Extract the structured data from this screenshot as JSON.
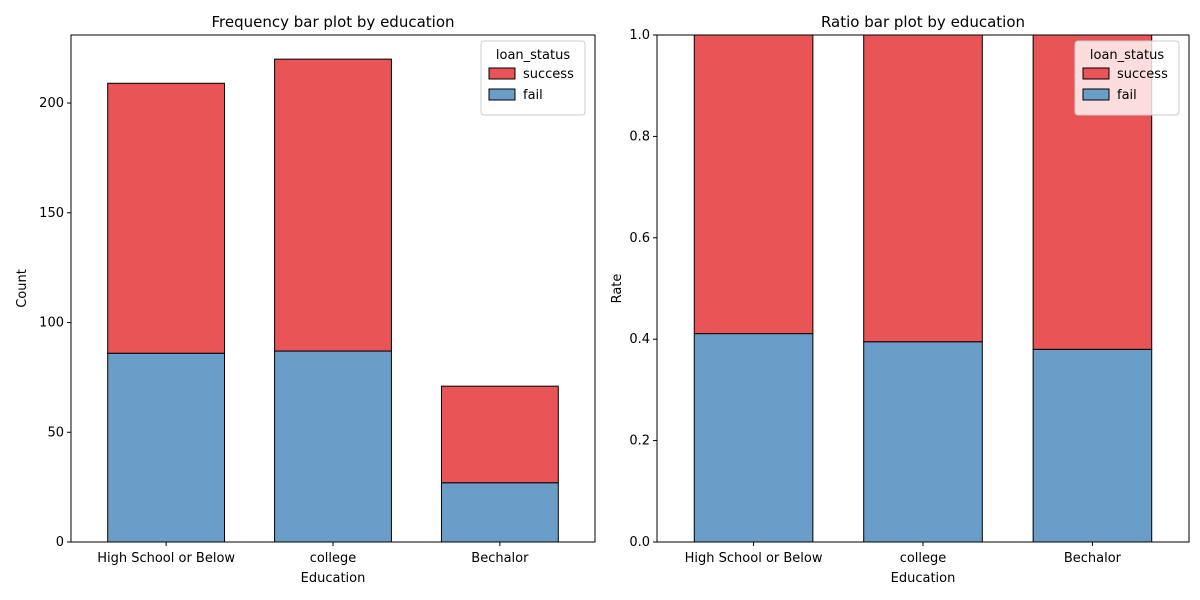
{
  "chart_data": [
    {
      "type": "bar",
      "stacked": true,
      "title": "Frequency bar plot by education",
      "xlabel": "Education",
      "ylabel": "Count",
      "categories": [
        "High School or Below",
        "college",
        "Bechalor"
      ],
      "series": [
        {
          "name": "fail",
          "values": [
            86,
            87,
            27
          ],
          "color": "#6a9ec8"
        },
        {
          "name": "success",
          "values": [
            123,
            133,
            44
          ],
          "color": "#e95457"
        }
      ],
      "ylim": [
        0,
        231
      ],
      "yticks": [
        "0",
        "50",
        "100",
        "150",
        "200"
      ],
      "ytick_values": [
        0,
        50,
        100,
        150,
        200
      ],
      "legend": {
        "title": "loan_status",
        "entries": [
          "success",
          "fail"
        ],
        "placement": "top-right"
      },
      "grid": false
    },
    {
      "type": "bar",
      "stacked": true,
      "title": "Ratio bar plot by education",
      "xlabel": "Education",
      "ylabel": "Rate",
      "categories": [
        "High School or Below",
        "college",
        "Bechalor"
      ],
      "series": [
        {
          "name": "fail",
          "values": [
            0.411,
            0.395,
            0.38
          ],
          "color": "#6a9ec8"
        },
        {
          "name": "success",
          "values": [
            0.589,
            0.605,
            0.62
          ],
          "color": "#e95457"
        }
      ],
      "ylim": [
        0,
        1
      ],
      "yticks": [
        "0.0",
        "0.2",
        "0.4",
        "0.6",
        "0.8",
        "1.0"
      ],
      "ytick_values": [
        0,
        0.2,
        0.4,
        0.6,
        0.8,
        1.0
      ],
      "legend": {
        "title": "loan_status",
        "entries": [
          "success",
          "fail"
        ],
        "placement": "top-right"
      },
      "grid": false
    }
  ]
}
